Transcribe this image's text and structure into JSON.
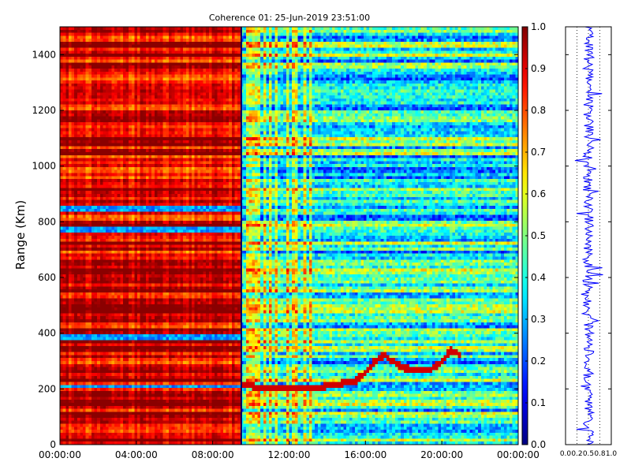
{
  "chart_data": [
    {
      "type": "heatmap",
      "title": "Coherence 01: 25-Jun-2019 23:51:00",
      "ylabel": "Range (Km)",
      "xlabel": "",
      "x_ticks": [
        "00:00:00",
        "04:00:00",
        "08:00:00",
        "12:00:00",
        "16:00:00",
        "20:00:00",
        "00:00:00"
      ],
      "x_tick_hours": [
        0,
        4,
        8,
        12,
        16,
        20,
        24
      ],
      "xlim_hours": [
        0,
        24
      ],
      "y_ticks": [
        0,
        200,
        400,
        600,
        800,
        1000,
        1200,
        1400
      ],
      "ylim": [
        0,
        1500
      ],
      "colormap": "jet",
      "colorbar": {
        "ticks": [
          "0.0",
          "0.1",
          "0.2",
          "0.3",
          "0.4",
          "0.5",
          "0.6",
          "0.7",
          "0.8",
          "0.9",
          "1.0"
        ],
        "tick_values": [
          0,
          0.1,
          0.2,
          0.3,
          0.4,
          0.5,
          0.6,
          0.7,
          0.8,
          0.9,
          1.0
        ],
        "range": [
          0,
          1
        ]
      },
      "regions": [
        {
          "x_hours": [
            0,
            9.5
          ],
          "coherence": 0.9
        },
        {
          "x_hours": [
            9.5,
            24
          ],
          "coherence": 0.4
        }
      ],
      "transition_hour": 9.5,
      "low_coherence_bands_km": [
        210,
        385,
        770,
        845
      ],
      "trace_points_hours_km": [
        [
          9.5,
          215
        ],
        [
          10.5,
          205
        ],
        [
          11.5,
          200
        ],
        [
          12.5,
          200
        ],
        [
          13.5,
          205
        ],
        [
          14.5,
          215
        ],
        [
          15.5,
          230
        ],
        [
          16.0,
          260
        ],
        [
          16.5,
          300
        ],
        [
          17.0,
          320
        ],
        [
          17.5,
          295
        ],
        [
          18.0,
          275
        ],
        [
          18.5,
          270
        ],
        [
          19.0,
          265
        ],
        [
          19.5,
          270
        ],
        [
          20.0,
          300
        ],
        [
          20.5,
          340
        ],
        [
          21.0,
          320
        ]
      ]
    },
    {
      "type": "line",
      "title": "",
      "xlabel": "",
      "ylabel": "",
      "x_ticks": [
        "0.0",
        "0.2",
        "0.5",
        "0.8",
        "1.0"
      ],
      "x_tick_values": [
        0,
        0.25,
        0.5,
        0.75,
        1.0
      ],
      "xlim": [
        0,
        1
      ],
      "ylim": [
        0,
        1500
      ],
      "grid": true,
      "series": [
        {
          "color": "#0000ff",
          "mean": 0.5,
          "amplitude": 0.2
        }
      ]
    }
  ]
}
